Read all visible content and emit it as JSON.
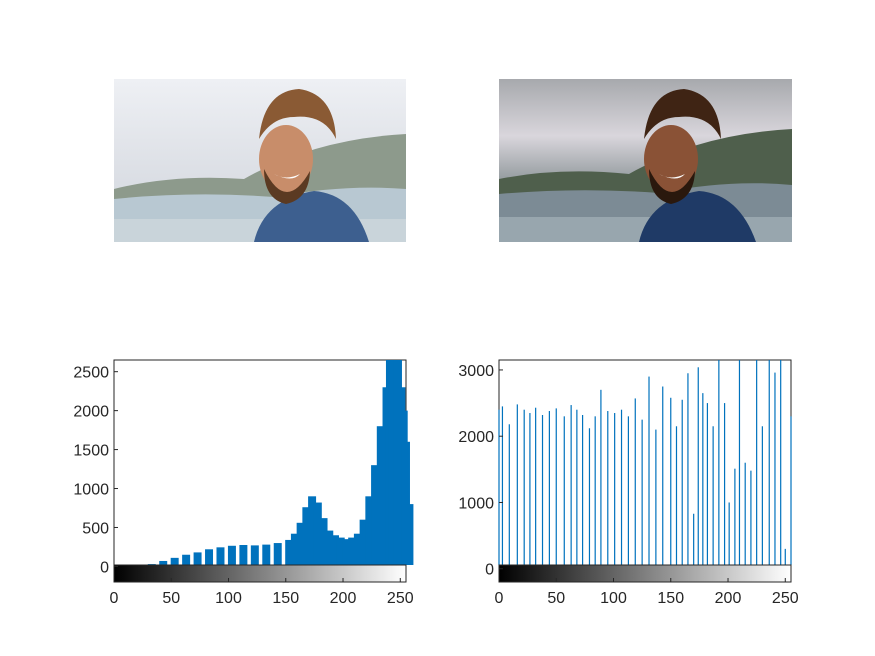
{
  "images": {
    "left": {
      "icon": "portrait-photo-original"
    },
    "right": {
      "icon": "portrait-photo-equalized"
    }
  },
  "colors": {
    "bar": "#0072BD",
    "axis": "#262626"
  },
  "chart_data": [
    {
      "type": "bar",
      "title": "",
      "xlabel": "",
      "ylabel": "",
      "xlim": [
        0,
        255
      ],
      "ylim": [
        -200,
        2650
      ],
      "xticks": [
        0,
        50,
        100,
        150,
        200,
        250
      ],
      "xtick_labels": [
        "0",
        "50",
        "100",
        "150",
        "200",
        "250"
      ],
      "yticks": [
        0,
        500,
        1000,
        1500,
        2000,
        2500
      ],
      "ytick_labels": [
        "0",
        "500",
        "1000",
        "1500",
        "2000",
        "2500"
      ],
      "grayscale_colorbar": true,
      "grid": false,
      "series": [
        {
          "x": [
            0,
            10,
            20,
            25,
            30,
            40,
            50,
            60,
            70,
            80,
            90,
            100,
            110,
            120,
            130,
            140,
            150,
            155,
            160,
            165,
            170,
            175,
            180,
            185,
            190,
            195,
            200,
            205,
            210,
            215,
            220,
            225,
            230,
            235,
            238,
            240,
            242,
            245,
            248,
            250,
            252,
            255
          ],
          "values": [
            0,
            0,
            2,
            10,
            30,
            70,
            110,
            150,
            180,
            220,
            245,
            265,
            275,
            270,
            280,
            300,
            340,
            420,
            560,
            760,
            900,
            820,
            620,
            460,
            400,
            370,
            350,
            370,
            420,
            600,
            900,
            1300,
            1800,
            2300,
            2650,
            2650,
            2650,
            2650,
            2300,
            2000,
            1600,
            800
          ]
        }
      ]
    },
    {
      "type": "bar",
      "title": "",
      "xlabel": "",
      "ylabel": "",
      "xlim": [
        0,
        255
      ],
      "ylim": [
        -200,
        3150
      ],
      "xticks": [
        0,
        50,
        100,
        150,
        200,
        250
      ],
      "xtick_labels": [
        "0",
        "50",
        "100",
        "150",
        "200",
        "250"
      ],
      "yticks": [
        0,
        1000,
        2000,
        3000
      ],
      "ytick_labels": [
        "0",
        "1000",
        "2000",
        "3000"
      ],
      "grayscale_colorbar": true,
      "grid": false,
      "series": [
        {
          "x": [
            0,
            3,
            9,
            16,
            22,
            27,
            32,
            38,
            44,
            50,
            57,
            63,
            68,
            73,
            79,
            84,
            89,
            95,
            101,
            107,
            113,
            119,
            125,
            131,
            137,
            143,
            150,
            155,
            160,
            165,
            170,
            174,
            178,
            182,
            187,
            192,
            197,
            201,
            206,
            210,
            215,
            220,
            225,
            230,
            236,
            241,
            246,
            250,
            255
          ],
          "values": [
            2400,
            2450,
            2180,
            2480,
            2400,
            2350,
            2430,
            2320,
            2380,
            2420,
            2300,
            2470,
            2400,
            2320,
            2120,
            2300,
            2700,
            2380,
            2350,
            2400,
            2300,
            2570,
            2250,
            2900,
            2100,
            2750,
            2580,
            2150,
            2550,
            2950,
            830,
            3040,
            2650,
            2500,
            2150,
            3150,
            2500,
            1000,
            1510,
            3150,
            1600,
            1480,
            3150,
            2150,
            3150,
            2960,
            3150,
            300,
            2300
          ]
        }
      ]
    }
  ]
}
